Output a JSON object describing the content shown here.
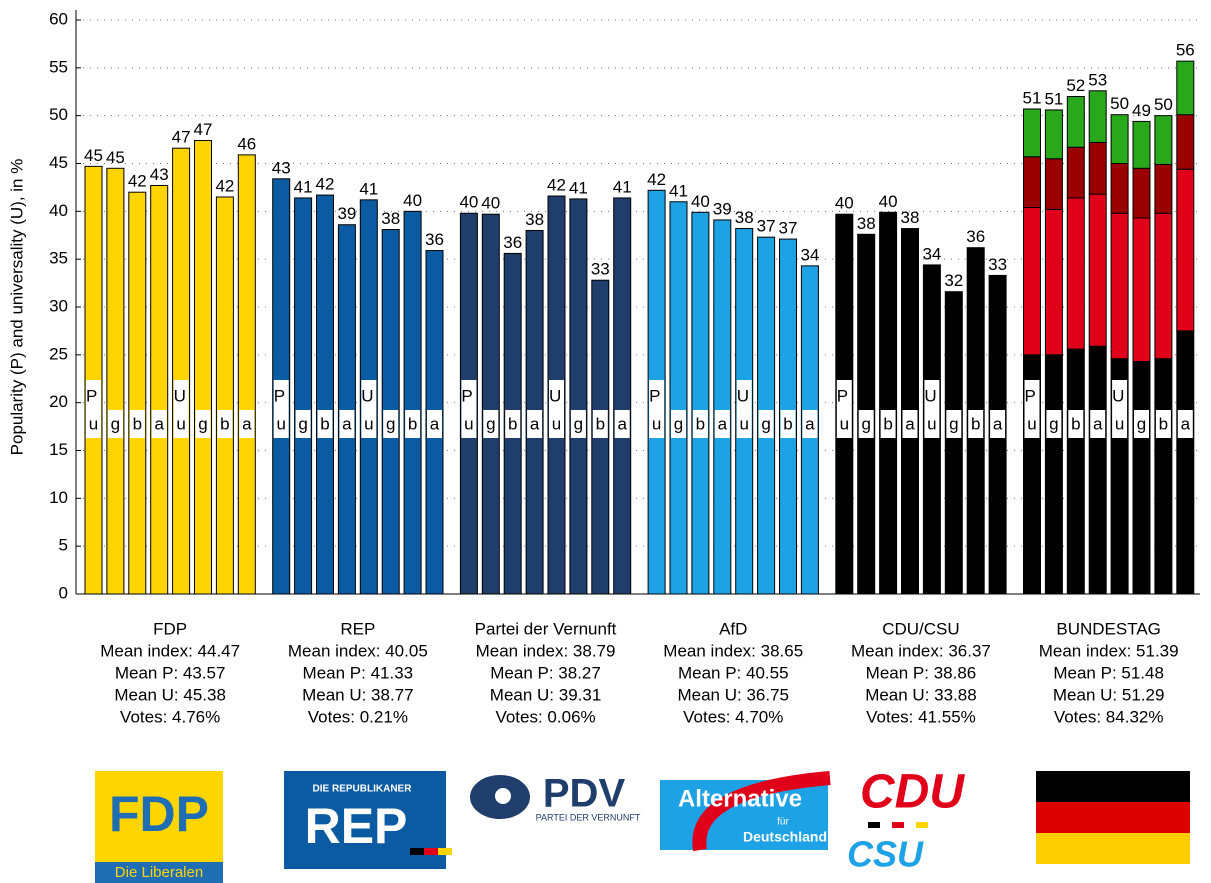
{
  "chart_data": {
    "type": "bar",
    "ylabel": "Popularity (P) and universality (U), in %",
    "ylim": [
      0,
      60
    ],
    "yticks": [
      0,
      5,
      10,
      15,
      20,
      25,
      30,
      35,
      40,
      45,
      50,
      55,
      60
    ],
    "grid": true,
    "bar_letters": [
      "u",
      "g",
      "b",
      "a",
      "u",
      "g",
      "b",
      "a"
    ],
    "half_labels": [
      "P",
      "U"
    ],
    "groups": [
      {
        "name": "FDP",
        "color": "#ffd500",
        "values": [
          44.7,
          44.5,
          42.0,
          42.7,
          46.6,
          47.4,
          41.5,
          45.9
        ],
        "value_labels": [
          "45",
          "45",
          "42",
          "43",
          "47",
          "47",
          "42",
          "46"
        ],
        "stats": [
          "Mean index: 44.47",
          "Mean P: 43.57",
          "Mean U: 45.38",
          "Votes: 4.76%"
        ]
      },
      {
        "name": "REP",
        "color": "#0b5ba3",
        "values": [
          43.4,
          41.4,
          41.7,
          38.6,
          41.2,
          38.1,
          40.0,
          35.9
        ],
        "value_labels": [
          "43",
          "41",
          "42",
          "39",
          "41",
          "38",
          "40",
          "36"
        ],
        "stats": [
          "Mean index: 40.05",
          "Mean P: 41.33",
          "Mean U: 38.77",
          "Votes: 0.21%"
        ]
      },
      {
        "name": "Partei der Vernunft",
        "color": "#203e6c",
        "values": [
          39.8,
          39.7,
          35.6,
          38.0,
          41.6,
          41.3,
          32.8,
          41.4
        ],
        "value_labels": [
          "40",
          "40",
          "36",
          "38",
          "42",
          "41",
          "33",
          "41"
        ],
        "stats": [
          "Mean index: 38.79",
          "Mean P: 38.27",
          "Mean U: 39.31",
          "Votes: 0.06%"
        ]
      },
      {
        "name": "AfD",
        "color": "#1ea2e6",
        "values": [
          42.2,
          41.0,
          39.9,
          39.1,
          38.2,
          37.3,
          37.1,
          34.3
        ],
        "value_labels": [
          "42",
          "41",
          "40",
          "39",
          "38",
          "37",
          "37",
          "34"
        ],
        "stats": [
          "Mean index: 38.65",
          "Mean P: 40.55",
          "Mean U: 36.75",
          "Votes: 4.70%"
        ]
      },
      {
        "name": "CDU/CSU",
        "color": "#000000",
        "values": [
          39.7,
          37.6,
          39.9,
          38.2,
          34.4,
          31.6,
          36.2,
          33.3
        ],
        "value_labels": [
          "40",
          "38",
          "40",
          "38",
          "34",
          "32",
          "36",
          "33"
        ],
        "stats": [
          "Mean index: 36.37",
          "Mean P: 38.86",
          "Mean U: 33.88",
          "Votes: 41.55%"
        ]
      },
      {
        "name": "BUNDESTAG",
        "stack": [
          {
            "color": "#000000",
            "values": [
              25.0,
              25.0,
              25.6,
              25.9,
              24.6,
              24.3,
              24.6,
              27.5
            ]
          },
          {
            "color": "#e1001a",
            "values": [
              15.4,
              15.2,
              15.8,
              15.9,
              15.2,
              15.0,
              15.2,
              16.9
            ]
          },
          {
            "color": "#9b0000",
            "values": [
              5.3,
              5.3,
              5.3,
              5.4,
              5.2,
              5.2,
              5.1,
              5.7
            ]
          },
          {
            "color": "#2aa81c",
            "values": [
              5.0,
              5.1,
              5.3,
              5.4,
              5.1,
              4.9,
              5.1,
              5.6
            ]
          }
        ],
        "totals": [
          50.7,
          50.6,
          52.0,
          52.6,
          50.1,
          49.4,
          50.0,
          55.7
        ],
        "total_labels": [
          "51",
          "51",
          "52",
          "53",
          "50",
          "49",
          "50",
          "56"
        ],
        "stats": [
          "Mean index: 51.39",
          "Mean P: 51.48",
          "Mean U: 51.29",
          "Votes: 84.32%"
        ]
      }
    ],
    "logos": [
      {
        "texts": [
          "FDP",
          "Die Liberalen"
        ]
      },
      {
        "texts": [
          "DIE REPUBLIKANER",
          "REP"
        ]
      },
      {
        "texts": [
          "PDV",
          "PARTEI DER VERNUNFT"
        ]
      },
      {
        "texts": [
          "Alternative",
          "für",
          "Deutschland"
        ]
      },
      {
        "texts": [
          "CDU",
          "CSU"
        ]
      },
      {
        "texts": []
      }
    ]
  }
}
